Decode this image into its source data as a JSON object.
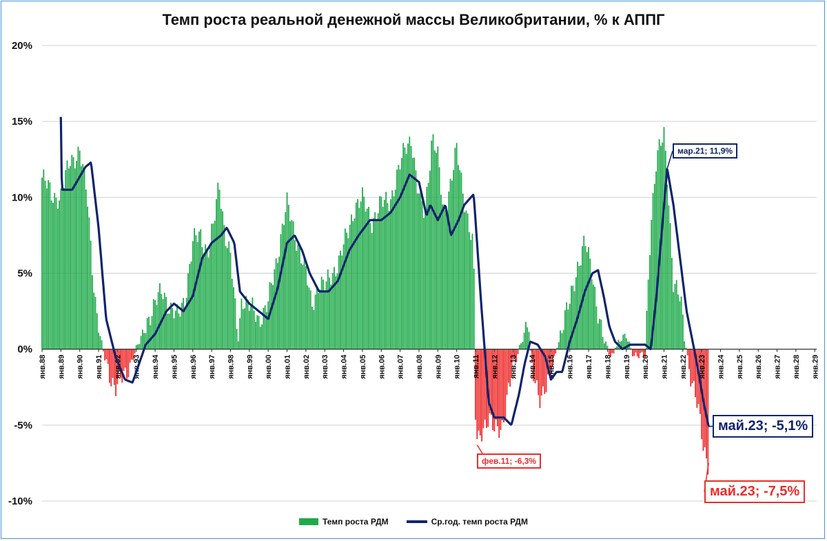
{
  "chart_data": {
    "type": "bar",
    "title": "Темп роста реальной денежной массы Великобритании, % к АППГ",
    "y_ticks": [
      "20%",
      "15%",
      "10%",
      "5%",
      "0%",
      "-5%",
      "-10%"
    ],
    "ylim": [
      -10,
      20
    ],
    "x_ticks": [
      "янв.88",
      "янв.89",
      "янв.90",
      "янв.91",
      "янв.92",
      "янв.93",
      "янв.94",
      "янв.95",
      "янв.96",
      "янв.97",
      "янв.98",
      "янв.99",
      "янв.00",
      "янв.01",
      "янв.02",
      "янв.03",
      "янв.04",
      "янв.05",
      "янв.06",
      "янв.07",
      "янв.08",
      "янв.09",
      "янв.10",
      "янв.11",
      "янв.12",
      "янв.13",
      "янв.14",
      "янв.15",
      "янв.16",
      "янв.17",
      "янв.18",
      "янв.19",
      "янв.20",
      "янв.21",
      "янв.22",
      "янв.23",
      "янв.24",
      "янв.25",
      "янв.26",
      "янв.27",
      "янв.28",
      "янв.29"
    ],
    "grid": true,
    "legend_position": "bottom",
    "series": [
      {
        "name": "Темп роста РДМ",
        "kind": "bar",
        "color_positive": "#1faa4a",
        "color_negative": "#ee2b2b",
        "anchors": [
          [
            1988.0,
            11.3
          ],
          [
            1988.5,
            10.2
          ],
          [
            1989.0,
            10.0
          ],
          [
            1989.5,
            12.5
          ],
          [
            1990.0,
            13.0
          ],
          [
            1990.4,
            10.0
          ],
          [
            1990.8,
            3.5
          ],
          [
            1991.1,
            0.6
          ],
          [
            1991.4,
            -1.0
          ],
          [
            1991.9,
            -2.5
          ],
          [
            1992.4,
            -1.8
          ],
          [
            1992.8,
            -0.5
          ],
          [
            1993.2,
            0.5
          ],
          [
            1993.6,
            2.0
          ],
          [
            1994.0,
            3.0
          ],
          [
            1994.4,
            3.8
          ],
          [
            1994.8,
            2.8
          ],
          [
            1995.2,
            2.0
          ],
          [
            1995.6,
            3.5
          ],
          [
            1996.0,
            7.0
          ],
          [
            1996.4,
            7.5
          ],
          [
            1996.8,
            6.5
          ],
          [
            1997.1,
            8.0
          ],
          [
            1997.4,
            11.0
          ],
          [
            1997.7,
            7.8
          ],
          [
            1998.0,
            6.0
          ],
          [
            1998.4,
            0.5
          ],
          [
            1998.6,
            3.5
          ],
          [
            1999.0,
            2.8
          ],
          [
            1999.5,
            2.0
          ],
          [
            2000.0,
            3.0
          ],
          [
            2000.4,
            5.5
          ],
          [
            2000.8,
            8.5
          ],
          [
            2001.0,
            9.5
          ],
          [
            2001.3,
            8.0
          ],
          [
            2001.7,
            6.5
          ],
          [
            2002.0,
            5.0
          ],
          [
            2002.3,
            2.8
          ],
          [
            2002.7,
            4.5
          ],
          [
            2003.0,
            4.0
          ],
          [
            2003.4,
            5.0
          ],
          [
            2003.8,
            6.0
          ],
          [
            2004.2,
            7.5
          ],
          [
            2004.6,
            9.5
          ],
          [
            2005.0,
            9.8
          ],
          [
            2005.5,
            8.5
          ],
          [
            2006.0,
            9.5
          ],
          [
            2006.5,
            10.0
          ],
          [
            2006.9,
            11.5
          ],
          [
            2007.3,
            13.5
          ],
          [
            2007.6,
            14.0
          ],
          [
            2007.9,
            10.5
          ],
          [
            2008.3,
            9.0
          ],
          [
            2008.7,
            14.0
          ],
          [
            2009.0,
            12.5
          ],
          [
            2009.3,
            9.0
          ],
          [
            2009.6,
            10.5
          ],
          [
            2010.0,
            13.0
          ],
          [
            2010.4,
            10.0
          ],
          [
            2010.9,
            6.5
          ],
          [
            2011.0,
            -4.5
          ],
          [
            2011.1,
            -6.3
          ],
          [
            2011.4,
            -5.0
          ],
          [
            2011.7,
            -4.5
          ],
          [
            2012.0,
            -5.5
          ],
          [
            2012.4,
            -5.0
          ],
          [
            2012.7,
            -3.0
          ],
          [
            2013.0,
            -1.5
          ],
          [
            2013.4,
            0.5
          ],
          [
            2013.8,
            1.8
          ],
          [
            2014.0,
            -1.5
          ],
          [
            2014.4,
            -3.0
          ],
          [
            2014.8,
            -2.5
          ],
          [
            2015.2,
            -0.5
          ],
          [
            2015.6,
            1.5
          ],
          [
            2016.0,
            3.0
          ],
          [
            2016.4,
            5.5
          ],
          [
            2016.8,
            7.0
          ],
          [
            2017.2,
            5.0
          ],
          [
            2017.5,
            2.5
          ],
          [
            2017.8,
            0.5
          ],
          [
            2018.2,
            -0.5
          ],
          [
            2018.6,
            0.5
          ],
          [
            2019.0,
            0.8
          ],
          [
            2019.4,
            -0.3
          ],
          [
            2019.8,
            -0.5
          ],
          [
            2020.0,
            -0.5
          ],
          [
            2020.3,
            8.5
          ],
          [
            2020.6,
            12.5
          ],
          [
            2021.0,
            14.0
          ],
          [
            2021.2,
            11.0
          ],
          [
            2021.5,
            4.5
          ],
          [
            2021.9,
            3.0
          ],
          [
            2022.1,
            0.5
          ],
          [
            2022.4,
            -1.5
          ],
          [
            2022.8,
            -4.0
          ],
          [
            2023.1,
            -6.5
          ],
          [
            2023.37,
            -7.5
          ]
        ]
      },
      {
        "name": "Ср.год. темп роста РДМ",
        "kind": "line",
        "color": "#10246b",
        "anchors": [
          [
            1989.0,
            15.3
          ],
          [
            1989.05,
            10.5
          ],
          [
            1989.6,
            10.5
          ],
          [
            1990.3,
            12.0
          ],
          [
            1990.6,
            12.3
          ],
          [
            1991.0,
            8.0
          ],
          [
            1991.4,
            2.0
          ],
          [
            1991.9,
            -0.5
          ],
          [
            1992.4,
            -2.0
          ],
          [
            1992.8,
            -2.2
          ],
          [
            1993.5,
            0.3
          ],
          [
            1994.0,
            1.0
          ],
          [
            1994.6,
            2.5
          ],
          [
            1995.0,
            3.0
          ],
          [
            1995.5,
            2.5
          ],
          [
            1996.0,
            3.5
          ],
          [
            1996.5,
            6.0
          ],
          [
            1997.0,
            7.0
          ],
          [
            1997.5,
            7.5
          ],
          [
            1997.8,
            8.0
          ],
          [
            1998.2,
            7.0
          ],
          [
            1998.5,
            3.8
          ],
          [
            1999.0,
            3.0
          ],
          [
            1999.5,
            2.5
          ],
          [
            2000.0,
            2.0
          ],
          [
            2000.5,
            4.0
          ],
          [
            2001.0,
            7.0
          ],
          [
            2001.4,
            7.5
          ],
          [
            2001.8,
            6.5
          ],
          [
            2002.2,
            5.0
          ],
          [
            2002.7,
            3.8
          ],
          [
            2003.2,
            3.8
          ],
          [
            2003.7,
            4.5
          ],
          [
            2004.3,
            6.5
          ],
          [
            2004.8,
            7.5
          ],
          [
            2005.4,
            8.5
          ],
          [
            2006.0,
            8.5
          ],
          [
            2006.5,
            9.0
          ],
          [
            2007.0,
            10.0
          ],
          [
            2007.5,
            11.5
          ],
          [
            2008.0,
            11.0
          ],
          [
            2008.4,
            8.8
          ],
          [
            2008.6,
            9.5
          ],
          [
            2009.0,
            8.5
          ],
          [
            2009.4,
            9.5
          ],
          [
            2009.7,
            7.5
          ],
          [
            2010.1,
            8.5
          ],
          [
            2010.4,
            9.5
          ],
          [
            2010.9,
            10.2
          ],
          [
            2011.0,
            8.5
          ],
          [
            2011.3,
            3.0
          ],
          [
            2011.7,
            -3.5
          ],
          [
            2012.0,
            -4.5
          ],
          [
            2012.5,
            -4.5
          ],
          [
            2012.9,
            -5.0
          ],
          [
            2013.3,
            -3.0
          ],
          [
            2013.6,
            -1.0
          ],
          [
            2013.9,
            0.5
          ],
          [
            2014.3,
            0.3
          ],
          [
            2014.7,
            -0.5
          ],
          [
            2015.0,
            -2.0
          ],
          [
            2015.3,
            -1.5
          ],
          [
            2015.6,
            -1.5
          ],
          [
            2016.0,
            0.5
          ],
          [
            2016.4,
            2.0
          ],
          [
            2016.8,
            3.8
          ],
          [
            2017.2,
            5.0
          ],
          [
            2017.5,
            5.2
          ],
          [
            2017.8,
            3.5
          ],
          [
            2018.1,
            1.5
          ],
          [
            2018.4,
            0.5
          ],
          [
            2018.8,
            0.0
          ],
          [
            2019.2,
            0.3
          ],
          [
            2019.6,
            0.3
          ],
          [
            2020.0,
            0.3
          ],
          [
            2020.3,
            0.0
          ],
          [
            2020.6,
            3.5
          ],
          [
            2020.9,
            8.0
          ],
          [
            2021.17,
            11.9
          ],
          [
            2021.5,
            9.5
          ],
          [
            2021.9,
            5.5
          ],
          [
            2022.2,
            2.5
          ],
          [
            2022.6,
            0.0
          ],
          [
            2022.9,
            -2.0
          ],
          [
            2023.1,
            -3.5
          ],
          [
            2023.37,
            -5.1
          ]
        ]
      }
    ],
    "annotations": [
      {
        "text": "мар.21; 11,9%",
        "x": 2021.17,
        "y": 11.9,
        "series": "Ср.год. темп роста РДМ"
      },
      {
        "text": "фев.11; -6,3%",
        "x": 2011.08,
        "y": -6.3,
        "series": "Темп роста РДМ"
      },
      {
        "text": "май.23; -5,1%",
        "x": 2023.37,
        "y": -5.1,
        "series": "Ср.год. темп роста РДМ"
      },
      {
        "text": "май.23; -7,5%",
        "x": 2023.37,
        "y": -7.5,
        "series": "Темп роста РДМ"
      }
    ]
  }
}
